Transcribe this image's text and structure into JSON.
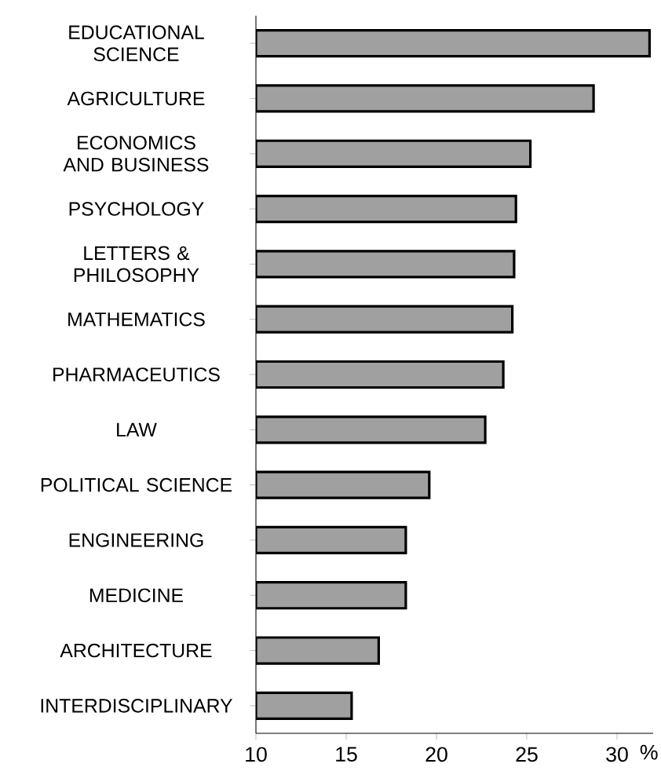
{
  "chart_data": {
    "type": "bar",
    "orientation": "horizontal",
    "xlabel": "%",
    "categories": [
      "EDUCATIONAL SCIENCE",
      "AGRICULTURE",
      "ECONOMICS AND BUSINESS",
      "PSYCHOLOGY",
      "LETTERS & PHILOSOPHY",
      "MATHEMATICS",
      "PHARMACEUTICS",
      "LAW",
      "POLITICAL SCIENCE",
      "ENGINEERING",
      "MEDICINE",
      "ARCHITECTURE",
      "INTERDISCIPLINARY"
    ],
    "values": [
      31.8,
      28.7,
      25.2,
      24.4,
      24.3,
      24.2,
      23.7,
      22.7,
      19.6,
      18.3,
      18.3,
      16.8,
      15.3
    ],
    "color": "#a0a0a0",
    "xlim": [
      10,
      32
    ],
    "xticks": [
      10,
      15,
      20,
      25,
      30
    ]
  }
}
